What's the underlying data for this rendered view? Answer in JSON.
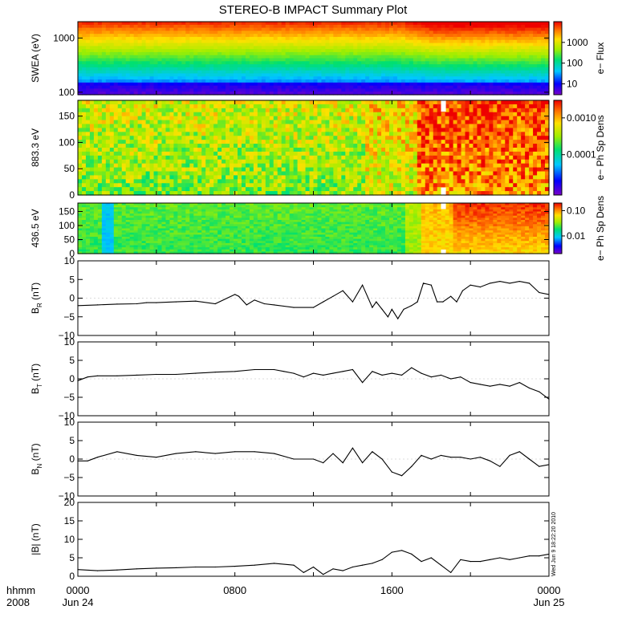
{
  "title": "STEREO-B IMPACT Summary Plot",
  "stamp": "Wed Jun 9 18:22:20 2010",
  "time_axis": {
    "row_label_1": "hhmm",
    "row_label_2": "2008",
    "ticks": [
      {
        "hour": 0,
        "label": "0000",
        "sublabel": "Jun 24"
      },
      {
        "hour": 8,
        "label": "0800",
        "sublabel": ""
      },
      {
        "hour": 16,
        "label": "1600",
        "sublabel": ""
      },
      {
        "hour": 24,
        "label": "0000",
        "sublabel": "Jun 25"
      }
    ],
    "range_hours": [
      0,
      24
    ]
  },
  "chart_data": [
    {
      "type": "heatmap",
      "ylabel": "SWEA (eV)",
      "yscale": "log",
      "ylim": [
        90,
        2000
      ],
      "yticks": [
        {
          "v": 100,
          "label": "100"
        },
        {
          "v": 1000,
          "label": "1000"
        }
      ],
      "colorbar": {
        "label": "e− Flux",
        "scale": "log",
        "range": [
          3,
          10000
        ],
        "ticks": [
          {
            "v": 10,
            "label": "10"
          },
          {
            "v": 100,
            "label": "100"
          },
          {
            "v": 1000,
            "label": "1000"
          }
        ]
      },
      "description": "Energy spectrogram; flux rises after ~1600 on Jun 24"
    },
    {
      "type": "heatmap",
      "ylabel": "883.3 eV",
      "ylim": [
        0,
        180
      ],
      "yticks": [
        {
          "v": 0,
          "label": "0"
        },
        {
          "v": 50,
          "label": "50"
        },
        {
          "v": 100,
          "label": "100"
        },
        {
          "v": 150,
          "label": "150"
        }
      ],
      "colorbar": {
        "label": "e− Ph Sp Dens",
        "scale": "log",
        "range": [
          8e-06,
          0.003
        ],
        "ticks": [
          {
            "v": 0.0001,
            "label": "0.0001"
          },
          {
            "v": 0.001,
            "label": "0.0010"
          }
        ]
      },
      "gap_hours": [
        18.5,
        18.75
      ]
    },
    {
      "type": "heatmap",
      "ylabel": "436.5 eV",
      "ylim": [
        0,
        180
      ],
      "yticks": [
        {
          "v": 0,
          "label": "0"
        },
        {
          "v": 50,
          "label": "50"
        },
        {
          "v": 100,
          "label": "100"
        },
        {
          "v": 150,
          "label": "150"
        }
      ],
      "colorbar": {
        "label": "e− Ph Sp Dens",
        "scale": "log",
        "range": [
          0.002,
          0.2
        ],
        "ticks": [
          {
            "v": 0.01,
            "label": "0.01"
          },
          {
            "v": 0.1,
            "label": "0.10"
          }
        ]
      },
      "gap_hours": [
        18.5,
        18.75
      ]
    },
    {
      "type": "line",
      "ylabel": "B",
      "ylabel_sub": "R",
      "ylabel_unit": "(nT)",
      "ylim": [
        -10,
        10
      ],
      "yticks": [
        {
          "v": -10,
          "label": "−10"
        },
        {
          "v": -5,
          "label": "−5"
        },
        {
          "v": 0,
          "label": "0"
        },
        {
          "v": 5,
          "label": "5"
        },
        {
          "v": 10,
          "label": "10"
        }
      ],
      "x": [
        0,
        1,
        2,
        3,
        3.5,
        4,
        5,
        6,
        7,
        8,
        8.2,
        8.6,
        9,
        9.5,
        10,
        11,
        12,
        12.5,
        13,
        13.5,
        14,
        14.5,
        15,
        15.2,
        15.5,
        15.8,
        16,
        16.3,
        16.6,
        17,
        17.3,
        17.6,
        18,
        18.3,
        18.6,
        19,
        19.3,
        19.6,
        20,
        20.5,
        21,
        21.5,
        22,
        22.5,
        23,
        23.5,
        24
      ],
      "y": [
        -2,
        -1.8,
        -1.6,
        -1.5,
        -1.2,
        -1.2,
        -1,
        -0.8,
        -1.5,
        1,
        0.5,
        -1.8,
        -0.5,
        -1.5,
        -1.8,
        -2.5,
        -2.5,
        -1,
        0.5,
        2,
        -1,
        3.5,
        -2.5,
        -1,
        -3,
        -5,
        -3,
        -5.5,
        -3,
        -2,
        -1,
        4,
        3.5,
        -1,
        -1,
        0.5,
        -1,
        2,
        3.5,
        3,
        4,
        4.5,
        4,
        4.5,
        4,
        1.5,
        1
      ]
    },
    {
      "type": "line",
      "ylabel": "B",
      "ylabel_sub": "T",
      "ylabel_unit": "(nT)",
      "ylim": [
        -10,
        10
      ],
      "yticks": [
        {
          "v": -10,
          "label": "−10"
        },
        {
          "v": -5,
          "label": "−5"
        },
        {
          "v": 0,
          "label": "0"
        },
        {
          "v": 5,
          "label": "5"
        },
        {
          "v": 10,
          "label": "10"
        }
      ],
      "x": [
        0,
        0.5,
        1,
        2,
        3,
        4,
        5,
        6,
        7,
        8,
        9,
        10,
        10.5,
        11,
        11.5,
        12,
        12.5,
        13,
        13.5,
        14,
        14.5,
        15,
        15.5,
        16,
        16.5,
        17,
        17.5,
        18,
        18.5,
        19,
        19.5,
        20,
        20.5,
        21,
        21.5,
        22,
        22.5,
        23,
        23.5,
        24
      ],
      "y": [
        -0.5,
        0.5,
        0.8,
        0.8,
        1,
        1.2,
        1.2,
        1.5,
        1.8,
        2,
        2.5,
        2.5,
        2,
        1.5,
        0.5,
        1.5,
        1,
        1.5,
        2,
        2.5,
        -1,
        2,
        1,
        1.5,
        1,
        3,
        1.5,
        0.5,
        1,
        0,
        0.5,
        -1,
        -1.5,
        -2,
        -1.5,
        -2,
        -1,
        -2.5,
        -3.5,
        -5.5
      ]
    },
    {
      "type": "line",
      "ylabel": "B",
      "ylabel_sub": "N",
      "ylabel_unit": "(nT)",
      "ylim": [
        -10,
        10
      ],
      "yticks": [
        {
          "v": -10,
          "label": "−10"
        },
        {
          "v": -5,
          "label": "−5"
        },
        {
          "v": 0,
          "label": "0"
        },
        {
          "v": 5,
          "label": "5"
        },
        {
          "v": 10,
          "label": "10"
        }
      ],
      "x": [
        0,
        0.5,
        1,
        2,
        3,
        4,
        5,
        6,
        7,
        8,
        9,
        10,
        11,
        12,
        12.5,
        13,
        13.5,
        14,
        14.5,
        15,
        15.5,
        16,
        16.5,
        17,
        17.5,
        18,
        18.5,
        19,
        19.5,
        20,
        20.5,
        21,
        21.5,
        22,
        22.5,
        23,
        23.5,
        24
      ],
      "y": [
        -0.5,
        -0.5,
        0.5,
        2,
        1,
        0.5,
        1.5,
        2,
        1.5,
        2,
        2,
        1.5,
        0,
        0,
        -1,
        1.5,
        -1,
        3,
        -1,
        2,
        0,
        -3.5,
        -4.5,
        -2,
        1,
        0,
        1,
        0.5,
        0.5,
        0,
        0.5,
        -0.5,
        -2,
        1,
        2,
        0,
        -2,
        -1.5
      ]
    },
    {
      "type": "line",
      "ylabel": "|B|",
      "ylabel_unit": "(nT)",
      "ylim": [
        0,
        20
      ],
      "yticks": [
        {
          "v": 0,
          "label": "0"
        },
        {
          "v": 5,
          "label": "5"
        },
        {
          "v": 10,
          "label": "10"
        },
        {
          "v": 15,
          "label": "15"
        },
        {
          "v": 20,
          "label": "20"
        }
      ],
      "x": [
        0,
        1,
        2,
        3,
        4,
        5,
        6,
        7,
        8,
        9,
        10,
        11,
        11.5,
        12,
        12.5,
        13,
        13.5,
        14,
        14.5,
        15,
        15.5,
        16,
        16.5,
        17,
        17.5,
        18,
        18.5,
        19,
        19.5,
        20,
        20.5,
        21,
        21.5,
        22,
        22.5,
        23,
        23.5,
        24
      ],
      "y": [
        1.8,
        1.5,
        1.7,
        2,
        2.2,
        2.3,
        2.5,
        2.5,
        2.7,
        3,
        3.5,
        3,
        1,
        2.5,
        0.5,
        2,
        1.5,
        2.5,
        3,
        3.5,
        4.5,
        6.5,
        7,
        6,
        4,
        5,
        3,
        1,
        4.5,
        4,
        4,
        4.5,
        5,
        4.5,
        5,
        5.5,
        5.5,
        6
      ]
    }
  ]
}
